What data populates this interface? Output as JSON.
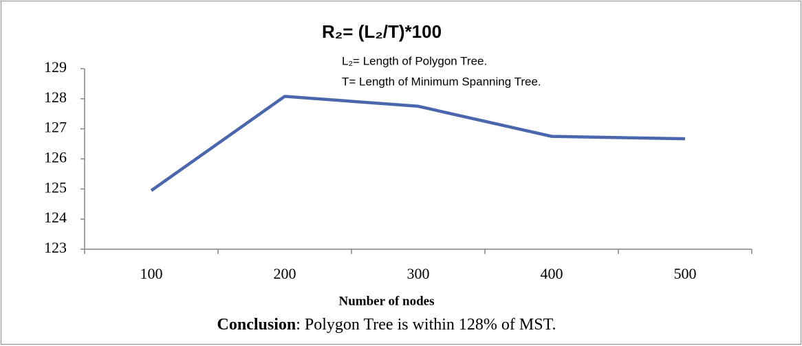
{
  "chart_data": {
    "type": "line",
    "title": "R₂= (L₂/T)*100",
    "annotations": [
      "L₂= Length of Polygon Tree.",
      "T=  Length of Minimum Spanning Tree."
    ],
    "x_label": "Number of nodes",
    "conclusion": {
      "label": "Conclusion",
      "text": ": Polygon Tree is within 128% of MST."
    },
    "categories": [
      "100",
      "200",
      "300",
      "400",
      "500"
    ],
    "series": [
      {
        "name": "R2",
        "color": "#4a66ac",
        "values": [
          124.95,
          128.08,
          127.75,
          126.75,
          126.67
        ]
      }
    ],
    "ylim": [
      123,
      129
    ],
    "yticks": [
      123,
      124,
      125,
      126,
      127,
      128,
      129
    ],
    "grid": false
  }
}
